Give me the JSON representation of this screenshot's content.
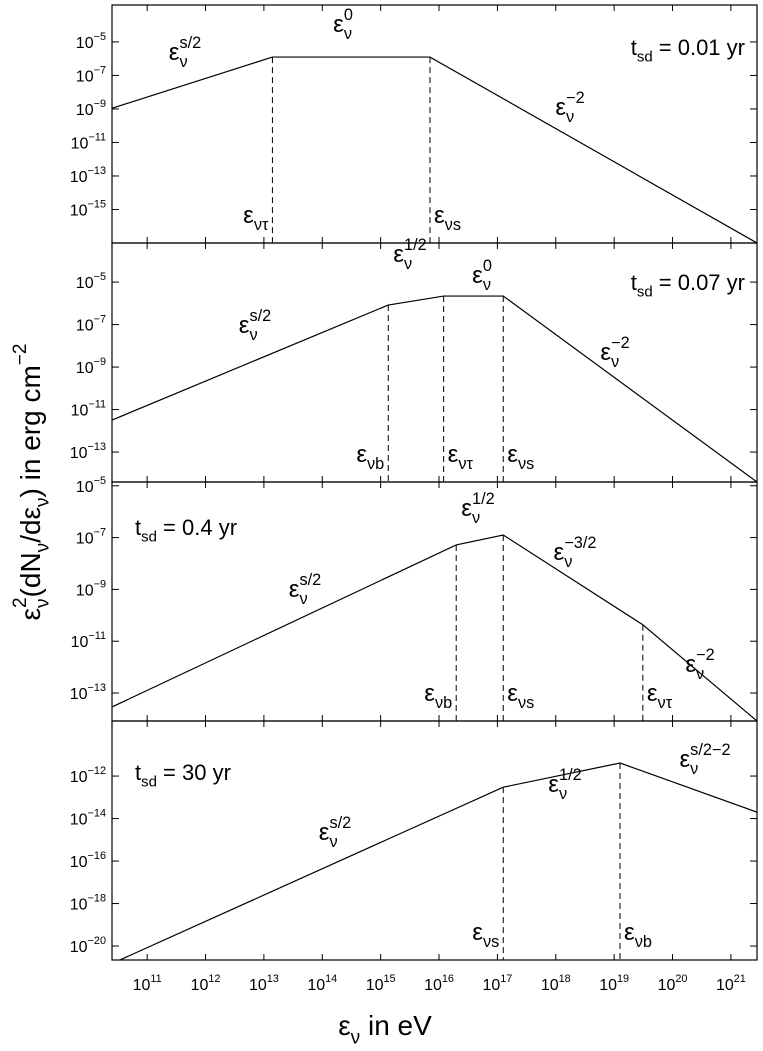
{
  "chart_data": {
    "type": "line",
    "xlog": true,
    "ylog": true,
    "color": "#000000",
    "xlabel": "ε_{ν} in eV",
    "ylabel": "ε_{ν}^{2}(dN_{ν}/dε_{ν}) in erg cm^{−2}",
    "xlim": [
      25000000000.0,
      2.8e+21
    ],
    "xticks": [
      {
        "value": 100000000000.0,
        "label": "10^{11}"
      },
      {
        "value": 1000000000000.0,
        "label": "10^{12}"
      },
      {
        "value": 10000000000000.0,
        "label": "10^{13}"
      },
      {
        "value": 100000000000000.0,
        "label": "10^{14}"
      },
      {
        "value": 1000000000000000.0,
        "label": "10^{15}"
      },
      {
        "value": 1e+16,
        "label": "10^{16}"
      },
      {
        "value": 1e+17,
        "label": "10^{17}"
      },
      {
        "value": 1e+18,
        "label": "10^{18}"
      },
      {
        "value": 1e+19,
        "label": "10^{19}"
      },
      {
        "value": 1e+20,
        "label": "10^{20}"
      },
      {
        "value": 1e+21,
        "label": "10^{21}"
      }
    ],
    "panels": [
      {
        "title": "t_{sd} = 0.01 yr",
        "ylim": [
          1e-17,
          0.0016
        ],
        "yticks": [
          {
            "value": 1e-05,
            "label": "10^{−5}"
          },
          {
            "value": 1e-07,
            "label": "10^{−7}"
          },
          {
            "value": 1e-09,
            "label": "10^{−9}"
          },
          {
            "value": 1e-11,
            "label": "10^{−11}"
          },
          {
            "value": 1e-13,
            "label": "10^{−13}"
          },
          {
            "value": 1e-15,
            "label": "10^{−15}"
          }
        ],
        "x": [
          25000000000.0,
          14000000000000.0,
          7000000000000000.0,
          2.8e+21
        ],
        "values": [
          1.1e-09,
          1.25e-06,
          1.25e-06,
          1e-17
        ],
        "breaks": [
          {
            "label": "ε_{ντ}",
            "x": 14000000000000.0
          },
          {
            "label": "ε_{νs}",
            "x": 7000000000000000.0
          }
        ],
        "slopes": [
          "ε_{ν}^{s/2}",
          "ε_{ν}^{0}",
          "ε_{ν}^{−2}"
        ]
      },
      {
        "title": "t_{sd} = 0.07 yr",
        "ylim": [
          3.9e-15,
          0.00069
        ],
        "yticks": [
          {
            "value": 1e-05,
            "label": "10^{−5}"
          },
          {
            "value": 1e-07,
            "label": "10^{−7}"
          },
          {
            "value": 1e-09,
            "label": "10^{−9}"
          },
          {
            "value": 1e-11,
            "label": "10^{−11}"
          },
          {
            "value": 1e-13,
            "label": "10^{−13}"
          }
        ],
        "x": [
          25000000000.0,
          1350000000000000.0,
          1.2e+16,
          1.26e+17,
          2.8e+21
        ],
        "values": [
          3.2e-12,
          8.3e-07,
          2.2e-06,
          2.2e-06,
          3.9e-15
        ],
        "breaks": [
          {
            "label": "ε_{νb}",
            "x": 1350000000000000.0
          },
          {
            "label": "ε_{ντ}",
            "x": 1.2e+16
          },
          {
            "label": "ε_{νs}",
            "x": 1.26e+17
          }
        ],
        "slopes": [
          "ε_{ν}^{s/2}",
          "ε_{ν}^{1/2}",
          "ε_{ν}^{0}",
          "ε_{ν}^{−2}"
        ]
      },
      {
        "title": "t_{sd} = 0.4 yr",
        "ylim": [
          8.3e-15,
          1.4e-05
        ],
        "yticks": [
          {
            "value": 1e-05,
            "label": "10^{−5}"
          },
          {
            "value": 1e-07,
            "label": "10^{−7}"
          },
          {
            "value": 1e-09,
            "label": "10^{−9}"
          },
          {
            "value": 1e-11,
            "label": "10^{−11}"
          },
          {
            "value": 1e-13,
            "label": "10^{−13}"
          }
        ],
        "x": [
          25000000000.0,
          1.97e+16,
          1.26e+17,
          3.1e+19,
          2.8e+21
        ],
        "values": [
          2.9e-14,
          5.2e-08,
          1.26e-07,
          4.3e-11,
          8.3e-15
        ],
        "breaks": [
          {
            "label": "ε_{νb}",
            "x": 1.97e+16
          },
          {
            "label": "ε_{νs}",
            "x": 1.26e+17
          },
          {
            "label": "ε_{ντ}",
            "x": 3.1e+19
          }
        ],
        "slopes": [
          "ε_{ν}^{s/2}",
          "ε_{ν}^{1/2}",
          "ε_{ν}^{−3/2}",
          "ε_{ν}^{−2}"
        ]
      },
      {
        "title": "t_{sd} = 30 yr",
        "ylim": [
          2.2e-21,
          3.9e-10
        ],
        "yticks": [
          {
            "value": 1e-12,
            "label": "10^{−12}"
          },
          {
            "value": 1e-14,
            "label": "10^{−14}"
          },
          {
            "value": 1e-16,
            "label": "10^{−16}"
          },
          {
            "value": 1e-18,
            "label": "10^{−18}"
          },
          {
            "value": 1e-20,
            "label": "10^{−20}"
          }
        ],
        "x": [
          34000000000.0,
          1.26e+17,
          1.26e+19,
          2.8e+21
        ],
        "values": [
          2.2e-21,
          3e-13,
          4.1e-12,
          2e-14
        ],
        "breaks": [
          {
            "label": "ε_{νs}",
            "x": 1.26e+17
          },
          {
            "label": "ε_{νb}",
            "x": 1.26e+19
          }
        ],
        "slopes": [
          "ε_{ν}^{s/2}",
          "ε_{ν}^{1/2}",
          "ε_{ν}^{s/2−2}"
        ]
      }
    ]
  }
}
